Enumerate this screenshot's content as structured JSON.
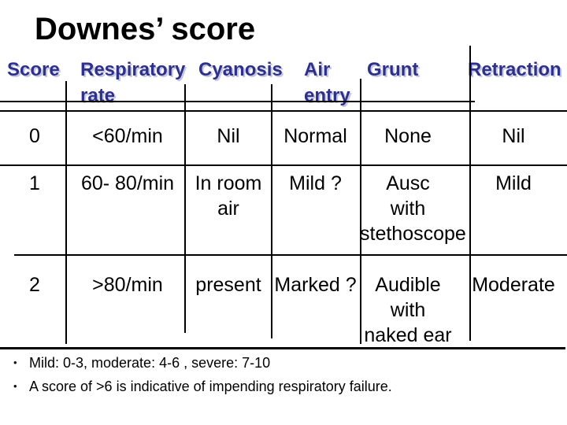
{
  "title": "Downes’ score",
  "colors": {
    "background": "#ffffff",
    "title_text": "#000000",
    "header_text": "#2e3187",
    "header_shadow": "#c5c6e3",
    "body_text": "#000000",
    "grid_line": "#000000"
  },
  "table": {
    "headers": [
      "Score",
      "Respiratory\nrate",
      "Cyanosis",
      "Air\nentry",
      "Grunt",
      "Retraction"
    ],
    "rows": [
      {
        "score": "0",
        "respiratory_rate": "<60/min",
        "cyanosis": "Nil",
        "air_entry": "Normal",
        "grunt": "None",
        "retraction": "Nil"
      },
      {
        "score": "1",
        "respiratory_rate": "60- 80/min",
        "cyanosis": "In room\nair",
        "air_entry": "Mild ?",
        "grunt": "Ausc\nwith\nstethoscope",
        "retraction": "Mild"
      },
      {
        "score": "2",
        "respiratory_rate": ">80/min",
        "cyanosis": "present",
        "air_entry": "Marked ?",
        "grunt": "Audible\nwith\nnaked ear",
        "retraction": "Moderate"
      }
    ]
  },
  "footnotes": [
    {
      "bullet": "•",
      "text": "Mild: 0-3, moderate: 4-6 , severe: 7-10"
    },
    {
      "bullet": "•",
      "text": "A score of >6 is indicative of impending respiratory failure."
    }
  ]
}
